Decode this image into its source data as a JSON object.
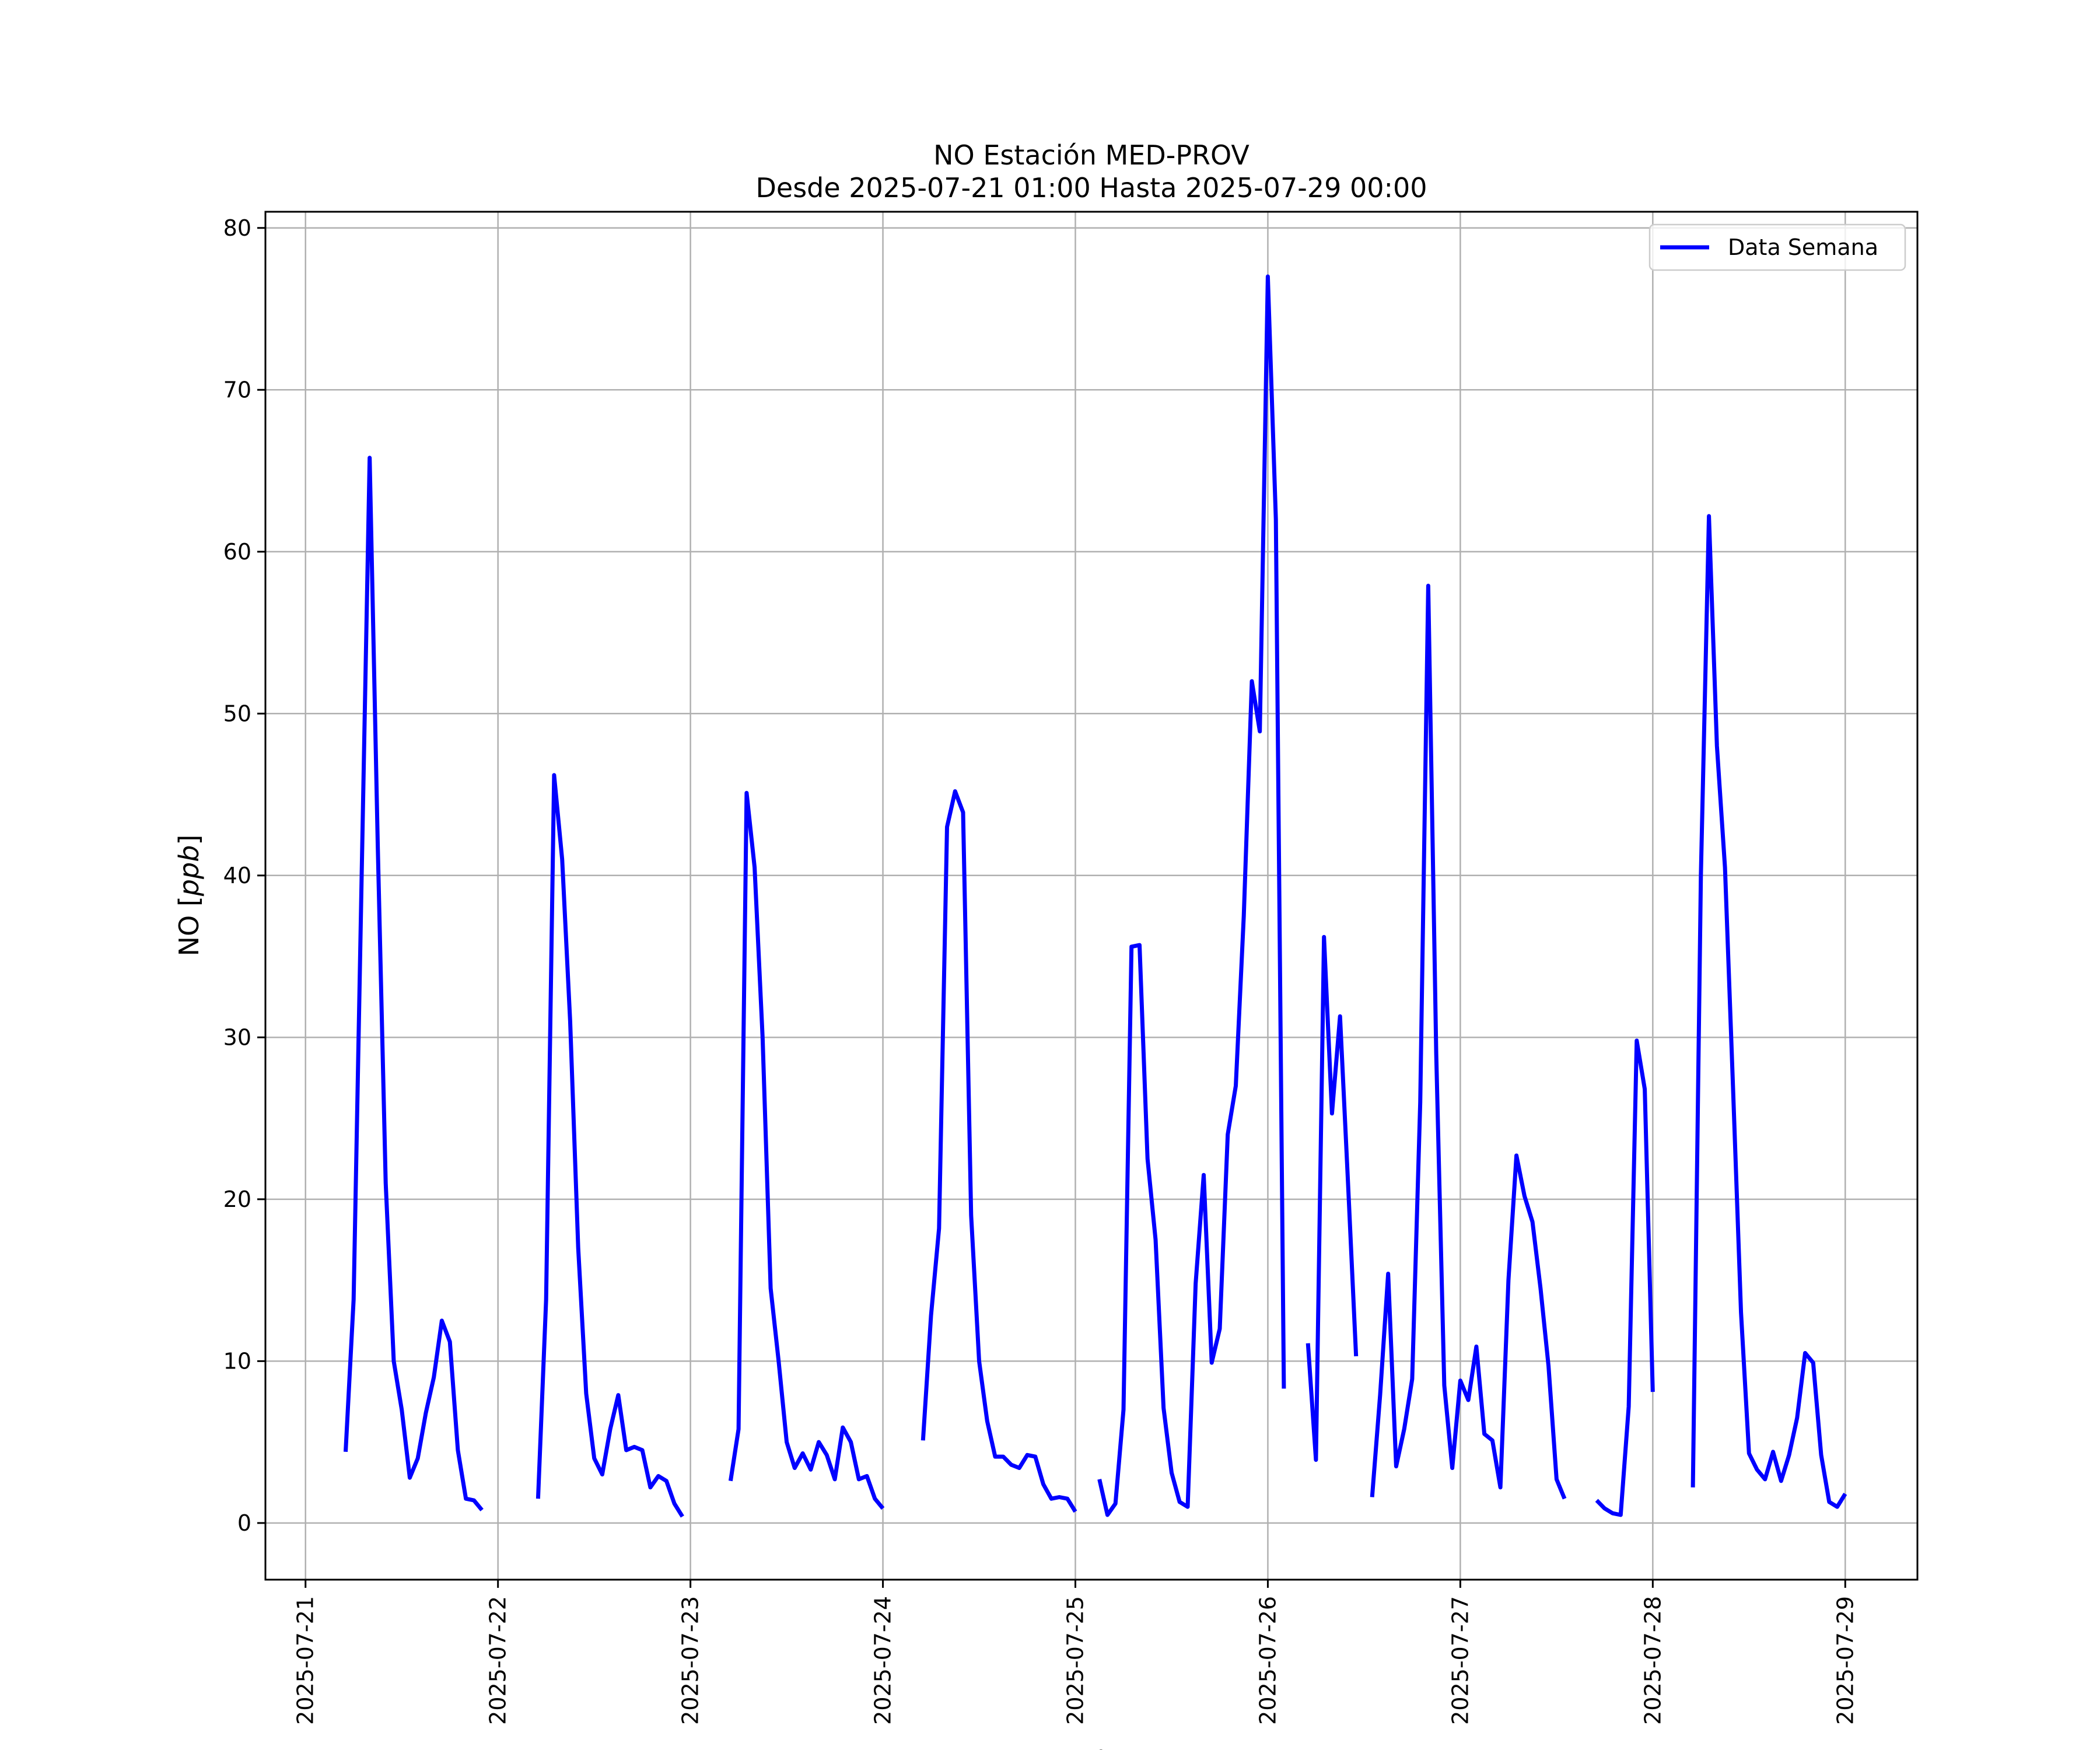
{
  "chart_data": {
    "type": "line",
    "title": "NO Estación MED-PROV",
    "subtitle": "Desde 2025-07-21 01:00 Hasta 2025-07-29 00:00",
    "xlabel": "Fecha",
    "ylabel_prefix": "NO [",
    "ylabel_unit": "ppb",
    "ylabel_suffix": "]",
    "xlim": [
      "2025-07-20 19:00",
      "2025-07-29 09:00"
    ],
    "ylim": [
      -3.5,
      81
    ],
    "grid": true,
    "legend_position": "top-right",
    "x_ticks": [
      "2025-07-21",
      "2025-07-22",
      "2025-07-23",
      "2025-07-24",
      "2025-07-25",
      "2025-07-26",
      "2025-07-27",
      "2025-07-28",
      "2025-07-29"
    ],
    "y_ticks": [
      "0",
      "10",
      "20",
      "30",
      "40",
      "50",
      "60",
      "70",
      "80"
    ],
    "series": [
      {
        "name": "Data Semana",
        "color": "#0000ff",
        "points": [
          [
            "2025-07-21 05:00",
            4.4
          ],
          [
            "2025-07-21 06:00",
            13.8
          ],
          [
            "2025-07-21 07:00",
            40.0
          ],
          [
            "2025-07-21 08:00",
            65.8
          ],
          [
            "2025-07-21 09:00",
            42.0
          ],
          [
            "2025-07-21 10:00",
            21.0
          ],
          [
            "2025-07-21 11:00",
            10.0
          ],
          [
            "2025-07-21 12:00",
            7.0
          ],
          [
            "2025-07-21 13:00",
            2.8
          ],
          [
            "2025-07-21 14:00",
            4.0
          ],
          [
            "2025-07-21 15:00",
            6.8
          ],
          [
            "2025-07-21 16:00",
            9.0
          ],
          [
            "2025-07-21 17:00",
            12.5
          ],
          [
            "2025-07-21 18:00",
            11.2
          ],
          [
            "2025-07-21 19:00",
            4.5
          ],
          [
            "2025-07-21 20:00",
            1.5
          ],
          [
            "2025-07-21 21:00",
            1.4
          ],
          [
            "2025-07-21 22:00",
            0.8
          ],
          null,
          [
            "2025-07-22 05:00",
            1.5
          ],
          [
            "2025-07-22 06:00",
            13.8
          ],
          [
            "2025-07-22 07:00",
            46.2
          ],
          [
            "2025-07-22 08:00",
            41.0
          ],
          [
            "2025-07-22 09:00",
            31.0
          ],
          [
            "2025-07-22 10:00",
            17.0
          ],
          [
            "2025-07-22 11:00",
            8.0
          ],
          [
            "2025-07-22 12:00",
            4.0
          ],
          [
            "2025-07-22 13:00",
            3.0
          ],
          [
            "2025-07-22 14:00",
            5.8
          ],
          [
            "2025-07-22 15:00",
            7.9
          ],
          [
            "2025-07-22 16:00",
            4.5
          ],
          [
            "2025-07-22 17:00",
            4.7
          ],
          [
            "2025-07-22 18:00",
            4.5
          ],
          [
            "2025-07-22 19:00",
            2.2
          ],
          [
            "2025-07-22 20:00",
            2.9
          ],
          [
            "2025-07-22 21:00",
            2.6
          ],
          [
            "2025-07-22 22:00",
            1.2
          ],
          [
            "2025-07-22 23:00",
            0.4
          ],
          null,
          [
            "2025-07-23 05:00",
            2.6
          ],
          [
            "2025-07-23 06:00",
            5.8
          ],
          [
            "2025-07-23 07:00",
            45.1
          ],
          [
            "2025-07-23 08:00",
            40.5
          ],
          [
            "2025-07-23 09:00",
            30.0
          ],
          [
            "2025-07-23 10:00",
            14.5
          ],
          [
            "2025-07-23 11:00",
            10.0
          ],
          [
            "2025-07-23 12:00",
            5.0
          ],
          [
            "2025-07-23 13:00",
            3.4
          ],
          [
            "2025-07-23 14:00",
            4.3
          ],
          [
            "2025-07-23 15:00",
            3.3
          ],
          [
            "2025-07-23 16:00",
            5.0
          ],
          [
            "2025-07-23 17:00",
            4.2
          ],
          [
            "2025-07-23 18:00",
            2.7
          ],
          [
            "2025-07-23 19:00",
            5.9
          ],
          [
            "2025-07-23 20:00",
            5.0
          ],
          [
            "2025-07-23 21:00",
            2.7
          ],
          [
            "2025-07-23 22:00",
            2.9
          ],
          [
            "2025-07-23 23:00",
            1.5
          ],
          [
            "2025-07-24 00:00",
            0.9
          ],
          null,
          [
            "2025-07-24 05:00",
            5.1
          ],
          [
            "2025-07-24 06:00",
            12.8
          ],
          [
            "2025-07-24 07:00",
            18.2
          ],
          [
            "2025-07-24 08:00",
            43.0
          ],
          [
            "2025-07-24 09:00",
            45.2
          ],
          [
            "2025-07-24 10:00",
            43.9
          ],
          [
            "2025-07-24 11:00",
            19.0
          ],
          [
            "2025-07-24 12:00",
            10.0
          ],
          [
            "2025-07-24 13:00",
            6.3
          ],
          [
            "2025-07-24 14:00",
            4.1
          ],
          [
            "2025-07-24 15:00",
            4.1
          ],
          [
            "2025-07-24 16:00",
            3.6
          ],
          [
            "2025-07-24 17:00",
            3.4
          ],
          [
            "2025-07-24 18:00",
            4.2
          ],
          [
            "2025-07-24 19:00",
            4.1
          ],
          [
            "2025-07-24 20:00",
            2.4
          ],
          [
            "2025-07-24 21:00",
            1.5
          ],
          [
            "2025-07-24 22:00",
            1.6
          ],
          [
            "2025-07-24 23:00",
            1.5
          ],
          [
            "2025-07-25 00:00",
            0.7
          ],
          null,
          [
            "2025-07-25 03:00",
            2.7
          ],
          [
            "2025-07-25 04:00",
            0.5
          ],
          [
            "2025-07-25 05:00",
            1.2
          ],
          [
            "2025-07-25 06:00",
            7.0
          ],
          [
            "2025-07-25 07:00",
            35.6
          ],
          [
            "2025-07-25 08:00",
            35.7
          ],
          [
            "2025-07-25 09:00",
            22.5
          ],
          [
            "2025-07-25 10:00",
            17.5
          ],
          [
            "2025-07-25 11:00",
            7.1
          ],
          [
            "2025-07-25 12:00",
            3.1
          ],
          [
            "2025-07-25 13:00",
            1.3
          ],
          [
            "2025-07-25 14:00",
            1.0
          ],
          [
            "2025-07-25 15:00",
            14.8
          ],
          [
            "2025-07-25 16:00",
            21.5
          ],
          [
            "2025-07-25 17:00",
            9.9
          ],
          [
            "2025-07-25 18:00",
            12.0
          ],
          [
            "2025-07-25 19:00",
            24.0
          ],
          [
            "2025-07-25 20:00",
            27.0
          ],
          [
            "2025-07-25 21:00",
            37.5
          ],
          [
            "2025-07-25 22:00",
            52.0
          ],
          [
            "2025-07-25 23:00",
            48.9
          ],
          [
            "2025-07-26 00:00",
            77.0
          ],
          [
            "2025-07-26 01:00",
            62.0
          ],
          [
            "2025-07-26 02:00",
            8.3
          ],
          null,
          [
            "2025-07-26 05:00",
            11.1
          ],
          [
            "2025-07-26 06:00",
            3.9
          ],
          [
            "2025-07-26 07:00",
            36.2
          ],
          [
            "2025-07-26 08:00",
            25.3
          ],
          [
            "2025-07-26 09:00",
            31.3
          ],
          [
            "2025-07-26 10:00",
            21.0
          ],
          [
            "2025-07-26 11:00",
            10.3
          ],
          null,
          [
            "2025-07-26 13:00",
            1.6
          ],
          [
            "2025-07-26 14:00",
            7.9
          ],
          [
            "2025-07-26 15:00",
            15.4
          ],
          [
            "2025-07-26 16:00",
            3.5
          ],
          [
            "2025-07-26 17:00",
            5.8
          ],
          [
            "2025-07-26 18:00",
            8.9
          ],
          [
            "2025-07-26 19:00",
            26.0
          ],
          [
            "2025-07-26 20:00",
            57.9
          ],
          [
            "2025-07-26 21:00",
            29.0
          ],
          [
            "2025-07-26 22:00",
            8.5
          ],
          [
            "2025-07-26 23:00",
            3.4
          ],
          [
            "2025-07-27 00:00",
            8.8
          ],
          [
            "2025-07-27 01:00",
            7.6
          ],
          [
            "2025-07-27 02:00",
            10.9
          ],
          [
            "2025-07-27 03:00",
            5.5
          ],
          [
            "2025-07-27 04:00",
            5.1
          ],
          [
            "2025-07-27 05:00",
            2.2
          ],
          [
            "2025-07-27 06:00",
            15.0
          ],
          [
            "2025-07-27 07:00",
            22.7
          ],
          [
            "2025-07-27 08:00",
            20.2
          ],
          [
            "2025-07-27 09:00",
            18.6
          ],
          [
            "2025-07-27 10:00",
            14.5
          ],
          [
            "2025-07-27 11:00",
            9.7
          ],
          [
            "2025-07-27 12:00",
            2.7
          ],
          [
            "2025-07-27 13:00",
            1.5
          ],
          null,
          [
            "2025-07-27 17:00",
            1.4
          ],
          [
            "2025-07-27 18:00",
            0.9
          ],
          [
            "2025-07-27 19:00",
            0.6
          ],
          [
            "2025-07-27 20:00",
            0.5
          ],
          [
            "2025-07-27 21:00",
            7.2
          ],
          [
            "2025-07-27 22:00",
            29.8
          ],
          [
            "2025-07-27 23:00",
            26.8
          ],
          [
            "2025-07-28 00:00",
            8.1
          ],
          null,
          [
            "2025-07-28 05:00",
            2.2
          ],
          [
            "2025-07-28 06:00",
            40.0
          ],
          [
            "2025-07-28 07:00",
            62.2
          ],
          [
            "2025-07-28 08:00",
            48.0
          ],
          [
            "2025-07-28 09:00",
            40.5
          ],
          [
            "2025-07-28 10:00",
            27.0
          ],
          [
            "2025-07-28 11:00",
            13.0
          ],
          [
            "2025-07-28 12:00",
            4.3
          ],
          [
            "2025-07-28 13:00",
            3.3
          ],
          [
            "2025-07-28 14:00",
            2.7
          ],
          [
            "2025-07-28 15:00",
            4.4
          ],
          [
            "2025-07-28 16:00",
            2.6
          ],
          [
            "2025-07-28 17:00",
            4.2
          ],
          [
            "2025-07-28 18:00",
            6.5
          ],
          [
            "2025-07-28 19:00",
            10.5
          ],
          [
            "2025-07-28 20:00",
            9.9
          ],
          [
            "2025-07-28 21:00",
            4.2
          ],
          [
            "2025-07-28 22:00",
            1.3
          ],
          [
            "2025-07-28 23:00",
            1.0
          ],
          [
            "2025-07-29 00:00",
            1.8
          ]
        ]
      }
    ]
  }
}
